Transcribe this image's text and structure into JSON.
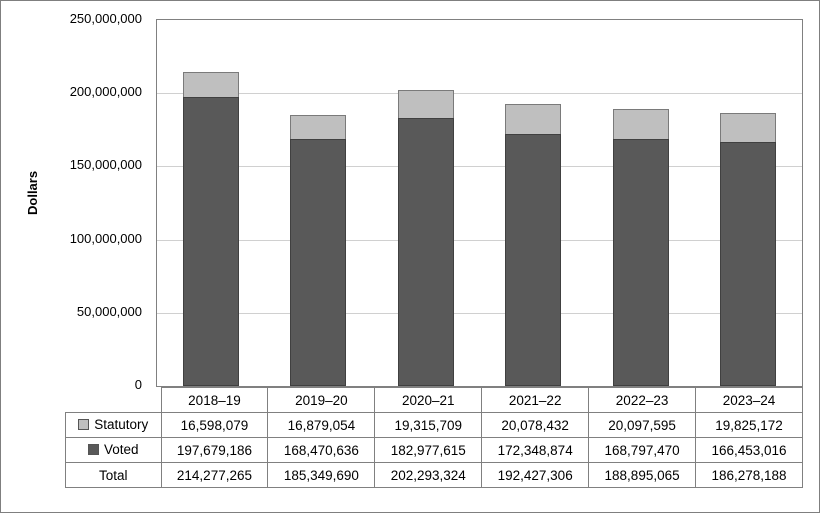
{
  "chart_data": {
    "type": "bar",
    "stacked": true,
    "title": "",
    "xlabel": "",
    "ylabel": "Dollars",
    "ylim": [
      0,
      250000000
    ],
    "ytick_interval": 50000000,
    "yticks": [
      "250,000,000",
      "200,000,000",
      "150,000,000",
      "100,000,000",
      "50,000,000",
      "0"
    ],
    "grid": true,
    "legend_position": "data-table-left",
    "categories": [
      "2018–19",
      "2019–20",
      "2020–21",
      "2021–22",
      "2022–23",
      "2023–24"
    ],
    "series": [
      {
        "name": "Statutory",
        "color": "#bfbfbf",
        "values": [
          16598079,
          16879054,
          19315709,
          20078432,
          20097595,
          19825172
        ]
      },
      {
        "name": "Voted",
        "color": "#595959",
        "values": [
          197679186,
          168470636,
          182977615,
          172348874,
          168797470,
          166453016
        ]
      }
    ],
    "totals": {
      "name": "Total",
      "values": [
        214277265,
        185349690,
        202293324,
        192427306,
        188895065,
        186278188
      ]
    }
  },
  "table": {
    "rows": [
      {
        "label": "Statutory",
        "swatch": "#bfbfbf",
        "values": [
          "16,598,079",
          "16,879,054",
          "19,315,709",
          "20,078,432",
          "20,097,595",
          "19,825,172"
        ]
      },
      {
        "label": "Voted",
        "swatch": "#595959",
        "values": [
          "197,679,186",
          "168,470,636",
          "182,977,615",
          "172,348,874",
          "168,797,470",
          "166,453,016"
        ]
      },
      {
        "label": "Total",
        "swatch": null,
        "values": [
          "214,277,265",
          "185,349,690",
          "202,293,324",
          "192,427,306",
          "188,895,065",
          "186,278,188"
        ]
      }
    ]
  }
}
